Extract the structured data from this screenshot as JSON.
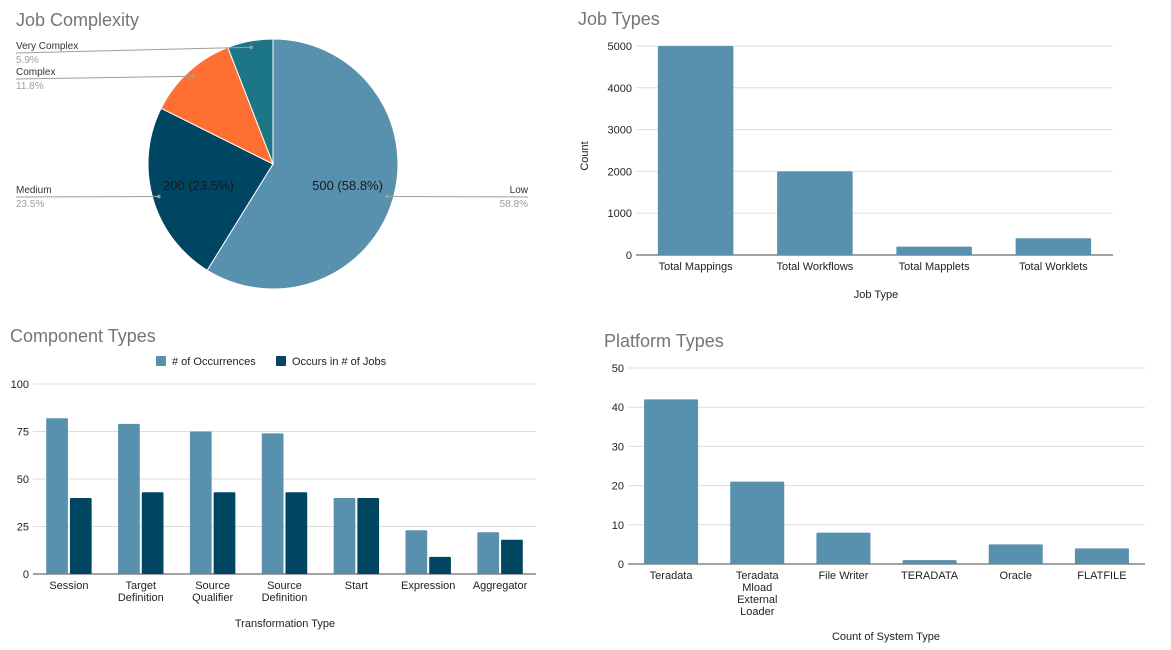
{
  "chart_data": [
    {
      "id": "job-complexity",
      "type": "pie",
      "title": "Job Complexity",
      "slices": [
        {
          "label": "Low",
          "value": 500,
          "percent": "58.8%",
          "inner_label": "500 (58.8%)",
          "color": "#5891ad"
        },
        {
          "label": "Medium",
          "value": 200,
          "percent": "23.5%",
          "inner_label": "200 (23.5%)",
          "color": "#004561"
        },
        {
          "label": "Complex",
          "value": 100,
          "percent": "11.8%",
          "inner_label": "",
          "color": "#ff6f31"
        },
        {
          "label": "Very Complex",
          "value": 50,
          "percent": "5.9%",
          "inner_label": "",
          "color": "#1c7685"
        }
      ]
    },
    {
      "id": "job-types",
      "type": "bar",
      "title": "Job Types",
      "xlabel": "Job Type",
      "ylabel": "Count",
      "ylim": [
        0,
        5000
      ],
      "yticks": [
        0,
        1000,
        2000,
        3000,
        4000,
        5000
      ],
      "categories": [
        "Total Mappings",
        "Total Workflows",
        "Total Mapplets",
        "Total Worklets"
      ],
      "values": [
        5000,
        2000,
        200,
        400
      ],
      "color": "#5891ad",
      "grid": true
    },
    {
      "id": "component-types",
      "type": "bar",
      "title": "Component Types",
      "xlabel": "Transformation Type",
      "ylabel": "",
      "ylim": [
        0,
        100
      ],
      "yticks": [
        0,
        25,
        50,
        75,
        100
      ],
      "legend_position": "top",
      "categories": [
        [
          "Session"
        ],
        [
          "Target",
          "Definition"
        ],
        [
          "Source",
          "Qualifier"
        ],
        [
          "Source",
          "Definition"
        ],
        [
          "Start"
        ],
        [
          "Expression"
        ],
        [
          "Aggregator"
        ]
      ],
      "series": [
        {
          "name": "# of Occurrences",
          "color": "#5891ad",
          "values": [
            82,
            79,
            75,
            74,
            40,
            23,
            22
          ]
        },
        {
          "name": "Occurs in # of Jobs",
          "color": "#004561",
          "values": [
            40,
            43,
            43,
            43,
            40,
            9,
            18
          ]
        }
      ],
      "grid": true
    },
    {
      "id": "platform-types",
      "type": "bar",
      "title": "Platform Types",
      "xlabel": "Count of System Type",
      "ylabel": "",
      "ylim": [
        0,
        50
      ],
      "yticks": [
        0,
        10,
        20,
        30,
        40,
        50
      ],
      "categories": [
        [
          "Teradata"
        ],
        [
          "Teradata",
          "Mload",
          "External",
          "Loader"
        ],
        [
          "File Writer"
        ],
        [
          "TERADATA"
        ],
        [
          "Oracle"
        ],
        [
          "FLATFILE"
        ]
      ],
      "values": [
        42,
        21,
        8,
        1,
        5,
        4
      ],
      "color": "#5891ad",
      "grid": true
    }
  ]
}
